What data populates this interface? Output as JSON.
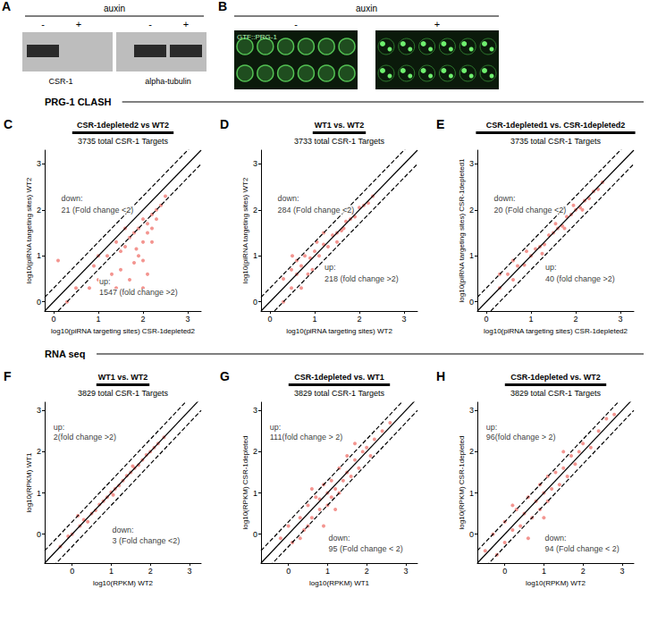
{
  "figure": {
    "sections": [
      "PRG-1 CLASH",
      "RNA seq"
    ],
    "A": {
      "letter": "A",
      "treatment": "auxin",
      "lanes": [
        "-",
        "+",
        "-",
        "+"
      ],
      "proteins": [
        "CSR-1",
        "alpha-tubulin"
      ],
      "bands": [
        [
          true,
          false
        ],
        [
          true,
          true
        ]
      ]
    },
    "B": {
      "letter": "B",
      "treatment": "auxin",
      "conditions": [
        "-",
        "+"
      ],
      "label": "GTF::PRG-1"
    }
  },
  "chart_data": [
    {
      "type": "scatter",
      "panel_label": "C",
      "title": "CSR-1depleted2 vs WT2",
      "subtitle": "3735 total CSR-1 Targets",
      "x_label": "log10(piRNA targeting sites) CSR-1depleted2",
      "y_label": "log10(piRNA targeting sites) WT2",
      "xlim": [
        -0.2,
        3.3
      ],
      "ylim": [
        -0.2,
        3.3
      ],
      "xticks": [
        0,
        1,
        2,
        3
      ],
      "yticks": [
        0,
        1,
        2,
        3
      ],
      "grid": false,
      "color": "#f28a84",
      "points": [
        [
          2.0,
          1.8
        ],
        [
          2.1,
          1.7
        ],
        [
          1.9,
          1.6
        ],
        [
          2.2,
          1.9
        ],
        [
          2.3,
          2.0
        ],
        [
          1.8,
          1.5
        ],
        [
          1.7,
          1.4
        ],
        [
          2.0,
          1.3
        ],
        [
          2.1,
          1.5
        ],
        [
          2.2,
          1.6
        ],
        [
          2.4,
          2.1
        ],
        [
          2.5,
          2.3
        ],
        [
          1.6,
          1.2
        ],
        [
          1.5,
          1.1
        ],
        [
          1.9,
          1.0
        ],
        [
          2.0,
          0.9
        ],
        [
          1.4,
          1.3
        ],
        [
          1.2,
          1.0
        ],
        [
          1.0,
          1.0
        ],
        [
          0.9,
          0.78
        ],
        [
          1.8,
          0.85
        ],
        [
          1.5,
          0.7
        ],
        [
          2.1,
          0.6
        ],
        [
          1.3,
          0.6
        ],
        [
          1.7,
          0.48
        ],
        [
          1.0,
          0.48
        ],
        [
          2.0,
          0.3
        ],
        [
          1.4,
          0.3
        ],
        [
          0.8,
          0.3
        ],
        [
          0.5,
          0.3
        ],
        [
          0.3,
          0.0
        ],
        [
          0.1,
          0.9
        ],
        [
          2.3,
          1.8
        ],
        [
          1.6,
          1.6
        ],
        [
          2.2,
          1.3
        ],
        [
          1.85,
          1.15
        ]
      ],
      "reference_lines": [
        {
          "offset": 0,
          "line_style": "solid"
        },
        {
          "offset": 0.3,
          "line_style": "dashed"
        },
        {
          "offset": -0.3,
          "line_style": "dashed"
        }
      ],
      "annotations": [
        {
          "text": "down:",
          "x": 0.15,
          "y": 2.25
        },
        {
          "text": "21 (Fold change <2)",
          "x": 0.15,
          "y": 2.0
        },
        {
          "text": "up:",
          "x": 1.0,
          "y": 0.45
        },
        {
          "text": "1547 (fold change >2)",
          "x": 1.0,
          "y": 0.2
        }
      ]
    },
    {
      "type": "scatter",
      "panel_label": "D",
      "title": "WT1 vs. WT2",
      "subtitle": "3733 total CSR-1 Targets",
      "x_label": "log10(piRNA targeting sites) WT2",
      "y_label": "log10(piRNA targeting sites) WT2",
      "xlim": [
        -0.2,
        3.3
      ],
      "ylim": [
        -0.2,
        3.3
      ],
      "xticks": [
        0,
        1,
        2,
        3
      ],
      "yticks": [
        0,
        1,
        2,
        3
      ],
      "grid": false,
      "color": "#f28a84",
      "points": [
        [
          0.3,
          0.5
        ],
        [
          0.3,
          0.0
        ],
        [
          0.48,
          0.7
        ],
        [
          0.48,
          0.3
        ],
        [
          0.6,
          0.6
        ],
        [
          0.6,
          0.9
        ],
        [
          0.7,
          0.78
        ],
        [
          0.78,
          1.0
        ],
        [
          0.85,
          0.6
        ],
        [
          0.9,
          0.95
        ],
        [
          1.0,
          1.1
        ],
        [
          1.1,
          1.0
        ],
        [
          1.2,
          1.25
        ],
        [
          1.3,
          1.2
        ],
        [
          1.4,
          1.45
        ],
        [
          1.5,
          1.5
        ],
        [
          1.6,
          1.55
        ],
        [
          1.7,
          1.75
        ],
        [
          1.8,
          1.8
        ],
        [
          1.9,
          1.85
        ],
        [
          2.0,
          2.05
        ],
        [
          2.1,
          2.1
        ],
        [
          2.2,
          2.15
        ],
        [
          2.3,
          2.3
        ],
        [
          1.5,
          1.3
        ],
        [
          1.2,
          1.5
        ],
        [
          0.95,
          0.7
        ],
        [
          0.7,
          0.3
        ],
        [
          1.65,
          1.6
        ],
        [
          1.85,
          1.95
        ],
        [
          1.05,
          1.3
        ],
        [
          0.5,
          1.0
        ]
      ],
      "reference_lines": [
        {
          "offset": 0,
          "line_style": "solid"
        },
        {
          "offset": 0.3,
          "line_style": "dashed"
        },
        {
          "offset": -0.3,
          "line_style": "dashed"
        }
      ],
      "annotations": [
        {
          "text": "down:",
          "x": 0.15,
          "y": 2.25
        },
        {
          "text": "284 (Fold change <2)",
          "x": 0.15,
          "y": 2.0
        },
        {
          "text": "up:",
          "x": 1.2,
          "y": 0.75
        },
        {
          "text": "218 (fold change >2)",
          "x": 1.2,
          "y": 0.5
        }
      ]
    },
    {
      "type": "scatter",
      "panel_label": "E",
      "title": "CSR-1depleted1 vs. CSR-1depleted2",
      "subtitle": "3735 total CSR-1 Targets",
      "x_label": "log10(piRNA targeting sites) CSR-1depleted2",
      "y_label": "log10(piRNA targeting sites) CSR-1depleted1",
      "xlim": [
        -0.2,
        3.3
      ],
      "ylim": [
        -0.2,
        3.3
      ],
      "xticks": [
        0,
        1,
        2,
        3
      ],
      "yticks": [
        0,
        1,
        2,
        3
      ],
      "grid": false,
      "color": "#f28a84",
      "points": [
        [
          0.3,
          0.3
        ],
        [
          0.48,
          0.6
        ],
        [
          0.6,
          0.48
        ],
        [
          0.7,
          0.78
        ],
        [
          0.85,
          0.8
        ],
        [
          1.0,
          1.0
        ],
        [
          1.1,
          1.15
        ],
        [
          1.2,
          1.2
        ],
        [
          1.3,
          1.25
        ],
        [
          1.4,
          1.45
        ],
        [
          1.5,
          1.5
        ],
        [
          1.6,
          1.6
        ],
        [
          1.7,
          1.65
        ],
        [
          1.8,
          1.85
        ],
        [
          1.9,
          1.9
        ],
        [
          2.0,
          2.0
        ],
        [
          2.1,
          2.05
        ],
        [
          2.2,
          2.2
        ],
        [
          2.3,
          2.25
        ],
        [
          2.4,
          2.4
        ],
        [
          2.5,
          2.45
        ],
        [
          2.6,
          2.6
        ],
        [
          1.55,
          1.7
        ],
        [
          1.75,
          1.6
        ],
        [
          1.95,
          2.1
        ],
        [
          2.15,
          2.0
        ],
        [
          0.9,
          1.1
        ],
        [
          1.25,
          1.05
        ],
        [
          0.3,
          0.6
        ],
        [
          0.6,
          0.9
        ]
      ],
      "reference_lines": [
        {
          "offset": 0,
          "line_style": "solid"
        },
        {
          "offset": 0.3,
          "line_style": "dashed"
        },
        {
          "offset": -0.3,
          "line_style": "dashed"
        }
      ],
      "annotations": [
        {
          "text": "down:",
          "x": 0.15,
          "y": 2.25
        },
        {
          "text": "20 (Fold change <2)",
          "x": 0.15,
          "y": 2.0
        },
        {
          "text": "up:",
          "x": 1.3,
          "y": 0.75
        },
        {
          "text": "40 (fold change >2)",
          "x": 1.3,
          "y": 0.5
        }
      ]
    },
    {
      "type": "scatter",
      "panel_label": "F",
      "title": "WT1 vs. WT2",
      "subtitle": "3829 total CSR-1 Targets",
      "x_label": "log10(RPKM) WT2",
      "y_label": "log10(RPKM) WT1",
      "xlim": [
        -0.7,
        3.3
      ],
      "ylim": [
        -0.7,
        3.2
      ],
      "xticks": [
        0,
        1,
        2,
        3
      ],
      "yticks": [
        0,
        1,
        2,
        3
      ],
      "grid": false,
      "color": "#f28a84",
      "points": [
        [
          -0.3,
          -0.3
        ],
        [
          -0.1,
          -0.05
        ],
        [
          0.0,
          0.0
        ],
        [
          0.2,
          0.2
        ],
        [
          0.3,
          0.35
        ],
        [
          0.5,
          0.5
        ],
        [
          0.6,
          0.58
        ],
        [
          0.7,
          0.72
        ],
        [
          0.8,
          0.8
        ],
        [
          0.9,
          0.9
        ],
        [
          1.0,
          1.02
        ],
        [
          1.1,
          1.1
        ],
        [
          1.2,
          1.18
        ],
        [
          1.3,
          1.3
        ],
        [
          1.4,
          1.42
        ],
        [
          1.5,
          1.5
        ],
        [
          1.6,
          1.6
        ],
        [
          1.7,
          1.68
        ],
        [
          1.8,
          1.8
        ],
        [
          1.9,
          1.92
        ],
        [
          2.0,
          2.0
        ],
        [
          2.1,
          2.1
        ],
        [
          2.2,
          2.2
        ],
        [
          2.35,
          2.35
        ],
        [
          0.4,
          0.3
        ],
        [
          1.05,
          0.95
        ],
        [
          1.55,
          1.65
        ],
        [
          0.15,
          0.45
        ]
      ],
      "reference_lines": [
        {
          "offset": 0,
          "line_style": "solid"
        },
        {
          "offset": 0.3,
          "line_style": "dashed"
        },
        {
          "offset": -0.3,
          "line_style": "dashed"
        }
      ],
      "annotations": [
        {
          "text": "up:",
          "x": -0.5,
          "y": 2.6
        },
        {
          "text": "2(fold change >2)",
          "x": -0.5,
          "y": 2.35
        },
        {
          "text": "down:",
          "x": 1.0,
          "y": 0.1
        },
        {
          "text": "3 (Fold change <2)",
          "x": 1.0,
          "y": -0.15
        }
      ]
    },
    {
      "type": "scatter",
      "panel_label": "G",
      "title": "CSR-1depleted vs. WT1",
      "subtitle": "3829 total CSR-1 Targets",
      "x_label": "log10(RPKM) WT1",
      "y_label": "log10(RPKM) CSR-1depleted",
      "xlim": [
        -0.7,
        3.3
      ],
      "ylim": [
        -0.7,
        3.2
      ],
      "xticks": [
        0,
        1,
        2,
        3
      ],
      "yticks": [
        0,
        1,
        2,
        3
      ],
      "grid": false,
      "color": "#f28a84",
      "points": [
        [
          -0.2,
          -0.1
        ],
        [
          0.0,
          0.2
        ],
        [
          0.1,
          -0.2
        ],
        [
          0.3,
          0.4
        ],
        [
          0.4,
          0.1
        ],
        [
          0.5,
          0.7
        ],
        [
          0.6,
          0.4
        ],
        [
          0.7,
          0.9
        ],
        [
          0.8,
          0.6
        ],
        [
          0.8,
          0.85
        ],
        [
          0.9,
          1.2
        ],
        [
          1.0,
          0.7
        ],
        [
          1.0,
          1.0
        ],
        [
          1.1,
          1.3
        ],
        [
          1.1,
          0.9
        ],
        [
          1.2,
          1.1
        ],
        [
          1.3,
          1.6
        ],
        [
          1.3,
          1.0
        ],
        [
          1.4,
          1.3
        ],
        [
          1.5,
          1.5
        ],
        [
          1.5,
          1.9
        ],
        [
          1.6,
          1.4
        ],
        [
          1.7,
          1.8
        ],
        [
          1.8,
          1.6
        ],
        [
          1.9,
          2.0
        ],
        [
          2.0,
          2.1
        ],
        [
          2.2,
          2.3
        ],
        [
          2.4,
          2.5
        ],
        [
          2.6,
          2.7
        ],
        [
          0.9,
          0.2
        ],
        [
          0.6,
          1.1
        ],
        [
          1.2,
          0.6
        ],
        [
          0.3,
          -0.1
        ],
        [
          1.7,
          2.2
        ],
        [
          2.1,
          1.9
        ],
        [
          0.5,
          0.2
        ]
      ],
      "reference_lines": [
        {
          "offset": 0,
          "line_style": "solid"
        },
        {
          "offset": 0.3,
          "line_style": "dashed"
        },
        {
          "offset": -0.3,
          "line_style": "dashed"
        }
      ],
      "annotations": [
        {
          "text": "up:",
          "x": -0.5,
          "y": 2.6
        },
        {
          "text": "111(fold change > 2)",
          "x": -0.5,
          "y": 2.35
        },
        {
          "text": "down:",
          "x": 1.0,
          "y": -0.1
        },
        {
          "text": "95 (Fold change < 2)",
          "x": 1.0,
          "y": -0.35
        }
      ]
    },
    {
      "type": "scatter",
      "panel_label": "H",
      "title": "CSR-1depleted vs. WT2",
      "subtitle": "3829 total CSR-1 Targets",
      "x_label": "log10(RPKM) WT2",
      "y_label": "log10(RPKM) CSR-1depleted",
      "xlim": [
        -0.7,
        3.3
      ],
      "ylim": [
        -0.7,
        3.2
      ],
      "xticks": [
        0,
        1,
        2,
        3
      ],
      "yticks": [
        0,
        1,
        2,
        3
      ],
      "grid": false,
      "color": "#f28a84",
      "points": [
        [
          -0.5,
          -0.4
        ],
        [
          -0.3,
          0.0
        ],
        [
          -0.2,
          -0.5
        ],
        [
          0.0,
          0.3
        ],
        [
          0.0,
          -0.2
        ],
        [
          0.2,
          0.1
        ],
        [
          0.3,
          0.6
        ],
        [
          0.4,
          0.2
        ],
        [
          0.5,
          0.5
        ],
        [
          0.6,
          0.9
        ],
        [
          0.7,
          0.4
        ],
        [
          0.8,
          0.8
        ],
        [
          0.9,
          1.2
        ],
        [
          0.9,
          0.6
        ],
        [
          1.0,
          1.0
        ],
        [
          1.1,
          1.4
        ],
        [
          1.1,
          0.8
        ],
        [
          1.2,
          1.1
        ],
        [
          1.3,
          1.5
        ],
        [
          1.4,
          1.2
        ],
        [
          1.5,
          1.6
        ],
        [
          1.6,
          1.4
        ],
        [
          1.7,
          1.9
        ],
        [
          1.8,
          1.7
        ],
        [
          1.9,
          2.0
        ],
        [
          2.0,
          2.2
        ],
        [
          2.2,
          2.1
        ],
        [
          2.4,
          2.5
        ],
        [
          2.6,
          2.8
        ],
        [
          2.8,
          2.9
        ],
        [
          0.6,
          -0.1
        ],
        [
          1.0,
          0.4
        ],
        [
          0.2,
          0.7
        ],
        [
          1.5,
          2.0
        ]
      ],
      "reference_lines": [
        {
          "offset": 0,
          "line_style": "solid"
        },
        {
          "offset": 0.3,
          "line_style": "dashed"
        },
        {
          "offset": -0.3,
          "line_style": "dashed"
        }
      ],
      "annotations": [
        {
          "text": "up:",
          "x": -0.5,
          "y": 2.6
        },
        {
          "text": "96(fold change > 2)",
          "x": -0.5,
          "y": 2.35
        },
        {
          "text": "down:",
          "x": 1.0,
          "y": -0.1
        },
        {
          "text": "94 (Fold change < 2)",
          "x": 1.0,
          "y": -0.35
        }
      ]
    }
  ]
}
